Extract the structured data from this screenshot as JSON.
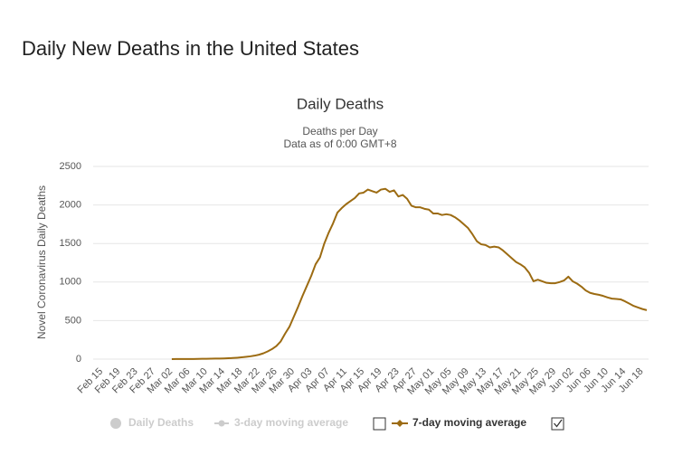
{
  "page_title": "Daily New Deaths in the United States",
  "chart_data": {
    "type": "line",
    "title": "Daily Deaths",
    "subtitle": [
      "Deaths per Day",
      "Data as of 0:00 GMT+8"
    ],
    "y_label": "Novel Coronavirus Daily Deaths",
    "ylim": [
      0,
      2500
    ],
    "yticks": [
      0,
      500,
      1000,
      1500,
      2000,
      2500
    ],
    "grid": true,
    "categories": [
      "Feb 15",
      null,
      null,
      null,
      "Feb 19",
      null,
      null,
      null,
      "Feb 23",
      null,
      null,
      null,
      "Feb 27",
      null,
      null,
      null,
      "Mar 02",
      null,
      null,
      null,
      "Mar 06",
      null,
      null,
      null,
      "Mar 10",
      null,
      null,
      null,
      "Mar 14",
      null,
      null,
      null,
      "Mar 18",
      null,
      null,
      null,
      "Mar 22",
      null,
      null,
      null,
      "Mar 26",
      null,
      null,
      null,
      "Mar 30",
      null,
      null,
      null,
      "Apr 03",
      null,
      null,
      null,
      "Apr 07",
      null,
      null,
      null,
      "Apr 11",
      null,
      null,
      null,
      "Apr 15",
      null,
      null,
      null,
      "Apr 19",
      null,
      null,
      null,
      "Apr 23",
      null,
      null,
      null,
      "Apr 27",
      null,
      null,
      null,
      "May 01",
      null,
      null,
      null,
      "May 05",
      null,
      null,
      null,
      "May 09",
      null,
      null,
      null,
      "May 13",
      null,
      null,
      null,
      "May 17",
      null,
      null,
      null,
      "May 21",
      null,
      null,
      null,
      "May 25",
      null,
      null,
      null,
      "May 29",
      null,
      null,
      null,
      "Jun 02",
      null,
      null,
      null,
      "Jun 06",
      null,
      null,
      null,
      "Jun 10",
      null,
      null,
      null,
      "Jun 14",
      null,
      null,
      null,
      "Jun 18",
      null,
      null
    ],
    "series": [
      {
        "name": "7-day moving average",
        "color": "#9c6b12",
        "values": [
          null,
          null,
          null,
          null,
          null,
          null,
          null,
          null,
          null,
          null,
          null,
          null,
          null,
          null,
          null,
          null,
          null,
          0,
          1,
          1,
          2,
          2,
          2,
          3,
          4,
          5,
          6,
          7,
          8,
          9,
          11,
          14,
          18,
          23,
          29,
          36,
          45,
          57,
          75,
          100,
          130,
          170,
          230,
          330,
          420,
          550,
          680,
          820,
          950,
          1080,
          1230,
          1320,
          1500,
          1640,
          1760,
          1900,
          1960,
          2010,
          2050,
          2090,
          2150,
          2160,
          2200,
          2180,
          2160,
          2200,
          2210,
          2170,
          2190,
          2110,
          2130,
          2080,
          1990,
          1970,
          1970,
          1950,
          1940,
          1890,
          1890,
          1870,
          1880,
          1870,
          1840,
          1800,
          1750,
          1700,
          1620,
          1530,
          1490,
          1480,
          1450,
          1460,
          1450,
          1410,
          1360,
          1310,
          1260,
          1230,
          1190,
          1120,
          1010,
          1030,
          1010,
          990,
          985,
          985,
          1000,
          1020,
          1070,
          1010,
          980,
          940,
          890,
          860,
          845,
          835,
          820,
          800,
          785,
          780,
          775,
          750,
          720,
          690,
          670,
          650,
          635
        ]
      }
    ],
    "hidden_series": [
      {
        "name": "Daily Deaths",
        "color": "#cccccc"
      },
      {
        "name": "3-day moving average",
        "color": "#cccccc"
      }
    ]
  }
}
